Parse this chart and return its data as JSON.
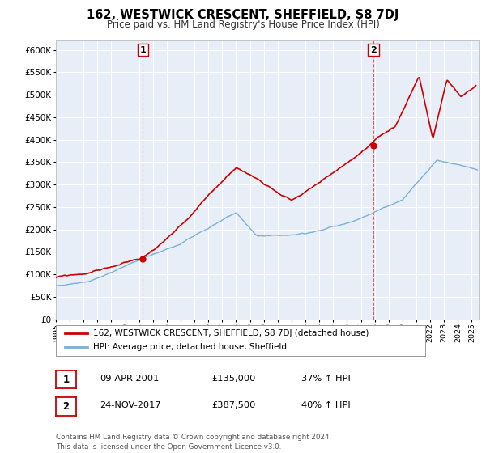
{
  "title": "162, WESTWICK CRESCENT, SHEFFIELD, S8 7DJ",
  "subtitle": "Price paid vs. HM Land Registry's House Price Index (HPI)",
  "legend_label_red": "162, WESTWICK CRESCENT, SHEFFIELD, S8 7DJ (detached house)",
  "legend_label_blue": "HPI: Average price, detached house, Sheffield",
  "sale1_label": "1",
  "sale1_date": "09-APR-2001",
  "sale1_price": "£135,000",
  "sale1_hpi": "37% ↑ HPI",
  "sale1_year": 2001.27,
  "sale1_value": 135000,
  "sale2_label": "2",
  "sale2_date": "24-NOV-2017",
  "sale2_price": "£387,500",
  "sale2_hpi": "40% ↑ HPI",
  "sale2_year": 2017.9,
  "sale2_value": 387500,
  "red_color": "#cc0000",
  "blue_color": "#7ab0d4",
  "background_color": "#e8eef8",
  "grid_color": "#ffffff",
  "marker_color": "#cc0000",
  "vline_color": "#cc0000",
  "box_color": "#cc0000",
  "ylim": [
    0,
    620000
  ],
  "xlim_start": 1995,
  "xlim_end": 2025.5,
  "yticks": [
    0,
    50000,
    100000,
    150000,
    200000,
    250000,
    300000,
    350000,
    400000,
    450000,
    500000,
    550000,
    600000
  ],
  "footer": "Contains HM Land Registry data © Crown copyright and database right 2024.\nThis data is licensed under the Open Government Licence v3.0."
}
